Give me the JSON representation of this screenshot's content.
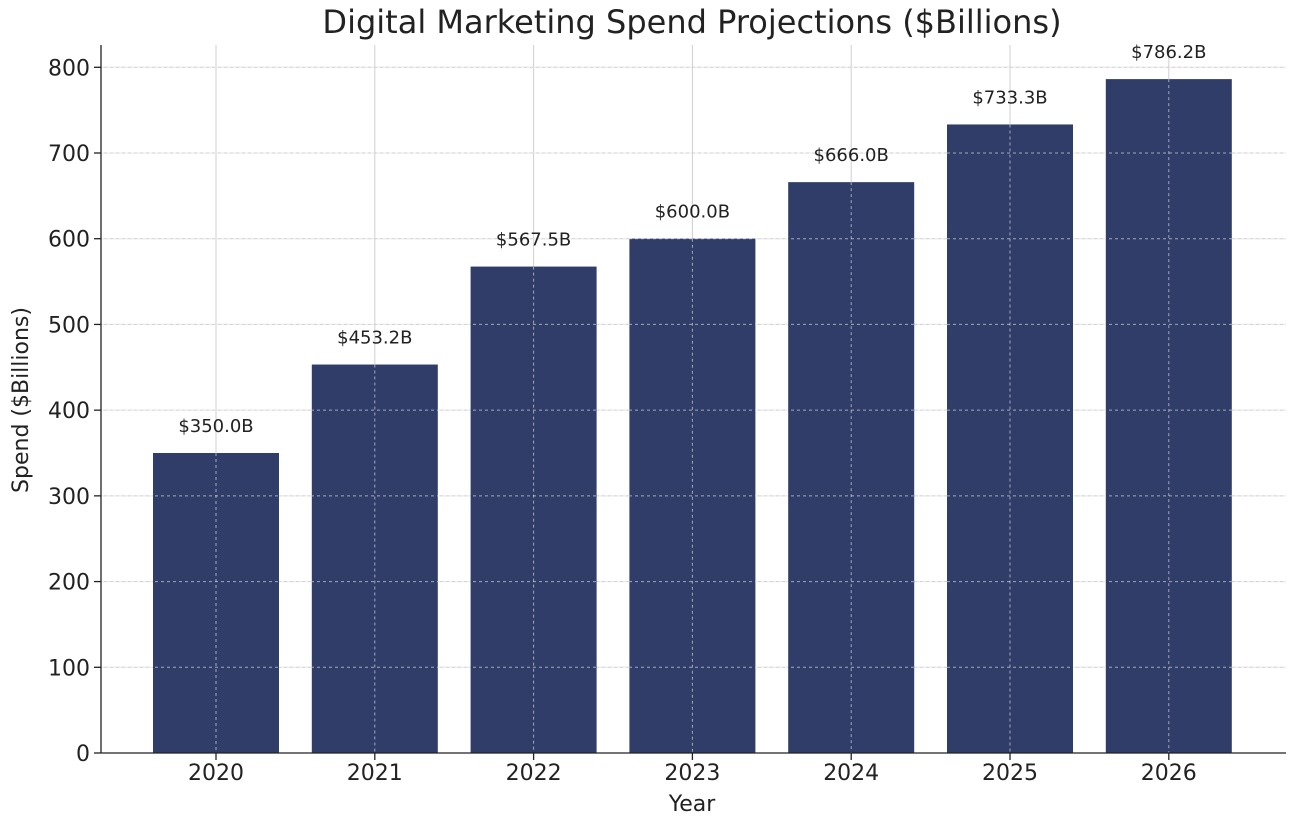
{
  "chart_data": {
    "type": "bar",
    "title": "Digital Marketing Spend Projections ($Billions)",
    "xlabel": "Year",
    "ylabel": "Spend ($Billions)",
    "categories": [
      "2020",
      "2021",
      "2022",
      "2023",
      "2024",
      "2025",
      "2026"
    ],
    "values": [
      350.0,
      453.2,
      567.5,
      600.0,
      666.0,
      733.3,
      786.2
    ],
    "data_labels": [
      "$350.0B",
      "$453.2B",
      "$567.5B",
      "$600.0B",
      "$666.0B",
      "$733.3B",
      "$786.2B"
    ],
    "ylim": [
      0,
      826
    ],
    "yticks": [
      0,
      100,
      200,
      300,
      400,
      500,
      600,
      700,
      800
    ],
    "grid": true,
    "colors": {
      "bar": "#2f3d68",
      "text": "#222222",
      "grid": "#cfcfcf"
    }
  }
}
